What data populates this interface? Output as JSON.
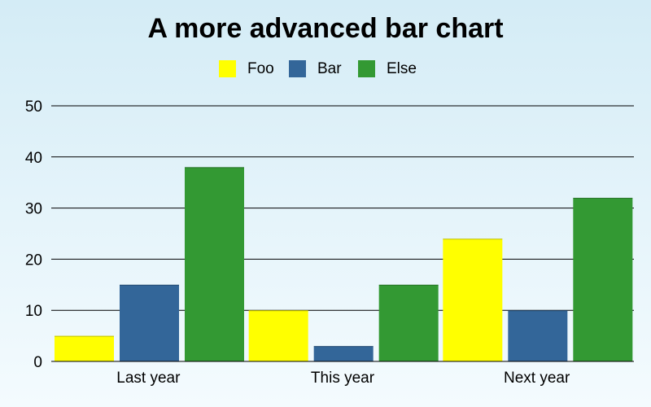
{
  "chart_data": {
    "type": "bar",
    "title": "A more advanced bar chart",
    "xlabel": "",
    "ylabel": "",
    "categories": [
      "Last year",
      "This year",
      "Next year"
    ],
    "series": [
      {
        "name": "Foo",
        "values": [
          5,
          10,
          24
        ],
        "color": "#ffff00"
      },
      {
        "name": "Bar",
        "values": [
          15,
          3,
          10
        ],
        "color": "#336699"
      },
      {
        "name": "Else",
        "values": [
          38,
          15,
          32
        ],
        "color": "#339933"
      }
    ],
    "ylim": [
      0,
      50
    ],
    "yticks": [
      "0",
      "10",
      "20",
      "30",
      "40",
      "50"
    ],
    "grid": "horizontal",
    "legend_position": "top-center"
  }
}
